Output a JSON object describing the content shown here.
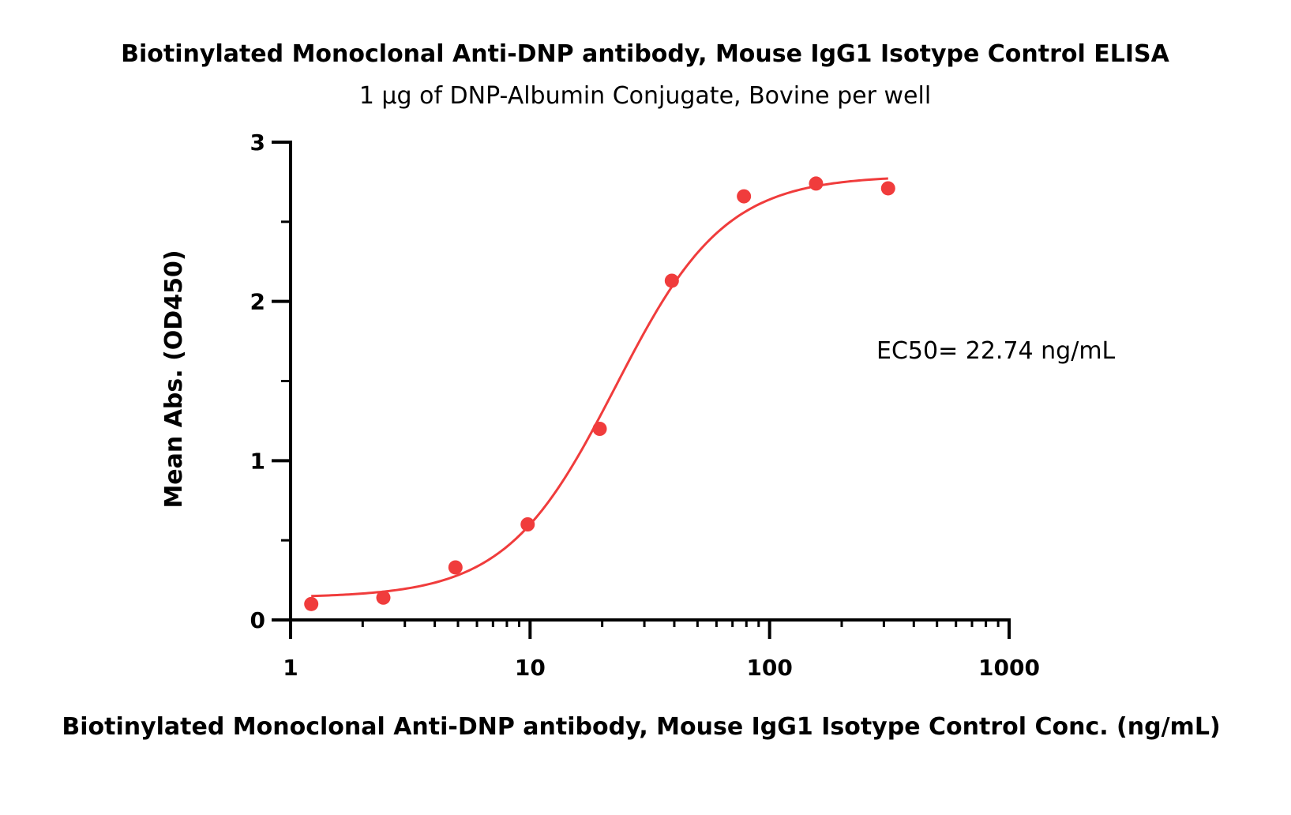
{
  "chart_data": {
    "type": "scatter",
    "title": "Biotinylated Monoclonal Anti-DNP antibody, Mouse IgG1 Isotype Control ELISA",
    "subtitle": "1 µg of DNP-Albumin Conjugate, Bovine per well",
    "xlabel": "Biotinylated Monoclonal Anti-DNP antibody, Mouse IgG1 Isotype Control Conc. (ng/mL)",
    "ylabel": "Mean Abs. (OD450)",
    "x_scale": "log",
    "xlim": [
      1,
      1000
    ],
    "ylim": [
      0,
      3
    ],
    "x_ticks": [
      1,
      10,
      100,
      1000
    ],
    "x_tick_labels": [
      "1",
      "10",
      "100",
      "1000"
    ],
    "y_ticks": [
      0,
      1,
      2,
      3
    ],
    "y_tick_labels": [
      "0",
      "1",
      "2",
      "3"
    ],
    "grid": false,
    "series": [
      {
        "color": "#f03c3c",
        "x": [
          1.22,
          2.44,
          4.88,
          9.77,
          19.53,
          39.06,
          78.13,
          156.25,
          312.5
        ],
        "y": [
          0.1,
          0.14,
          0.33,
          0.6,
          1.2,
          2.13,
          2.66,
          2.74,
          2.71
        ],
        "fit": {
          "model": "4PL",
          "bottom": 0.14,
          "top": 2.79,
          "ec50": 22.74,
          "hill": 1.9
        }
      }
    ],
    "annotations": [
      {
        "text": "EC50= 22.74 ng/mL"
      }
    ]
  }
}
